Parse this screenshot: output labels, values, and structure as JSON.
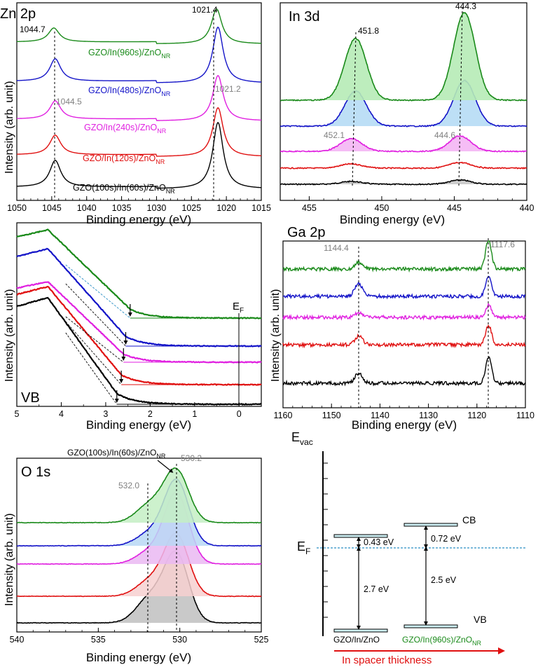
{
  "colors": {
    "green": "#1a8a1a",
    "blue": "#1414c8",
    "magenta": "#e020e0",
    "red": "#e01010",
    "black": "#000000",
    "gray": "#808080",
    "cyan": "#2a8fc4",
    "arrow_red": "#e01010"
  },
  "chart_data": [
    {
      "id": "zn2p",
      "type": "line",
      "title": "Zn 2p",
      "xlabel": "Binding energy (eV)",
      "ylabel": "Intensity (arb. unit)",
      "xlim": [
        1050,
        1015
      ],
      "xticks": [
        "1050",
        "1045",
        "1040",
        "1035",
        "1030",
        "1025",
        "1020",
        "1015"
      ],
      "peaks": [
        1044.7,
        1021.4
      ],
      "series": [
        {
          "name": "GZO(100s)/In(60s)/ZnO",
          "sub": "NR",
          "color": "black"
        },
        {
          "name": "GZO/In(120s)/ZnO",
          "sub": "NR",
          "color": "red"
        },
        {
          "name": "GZO/In(240s)/ZnO",
          "sub": "NR",
          "color": "magenta"
        },
        {
          "name": "GZO/In(480s)/ZnO",
          "sub": "NR",
          "color": "blue"
        },
        {
          "name": "GZO/In(960s)/ZnO",
          "sub": "NR",
          "color": "green"
        }
      ],
      "annotations": [
        "1044.7",
        "1021.4",
        "1044.5",
        "1021.2"
      ]
    },
    {
      "id": "in3d",
      "type": "line",
      "title": "In 3d",
      "xlabel": "Binding energy (eV)",
      "xlim": [
        457,
        440
      ],
      "xticks": [
        "455",
        "450",
        "445",
        "440"
      ],
      "peaks": [
        451.8,
        444.3
      ],
      "annotations": [
        "451.8",
        "444.3",
        "452.1",
        "444.6"
      ]
    },
    {
      "id": "vb",
      "type": "line",
      "title": "VB",
      "xlabel": "Binding energy (eV)",
      "ylabel": "Intensity (arb. unit)",
      "xlim": [
        5,
        -0.5
      ],
      "xticks": [
        "5",
        "4",
        "3",
        "2",
        "1",
        "0"
      ],
      "onsets": [
        2.75,
        2.65,
        2.6,
        2.55,
        2.45
      ],
      "fermi_label": "E",
      "fermi_sub": "F"
    },
    {
      "id": "ga2p",
      "type": "line",
      "title": "Ga 2p",
      "xlabel": "Binding energy (eV)",
      "ylabel": "Intensity (arb. unit)",
      "xlim": [
        1160,
        1110
      ],
      "xticks": [
        "1160",
        "1150",
        "1140",
        "1130",
        "1120",
        "1110"
      ],
      "peaks": [
        1144.4,
        1117.6
      ],
      "annotations": [
        "1144.4",
        "1117.6"
      ]
    },
    {
      "id": "o1s",
      "type": "line",
      "title": "O 1s",
      "xlabel": "Binding energy (eV)",
      "ylabel": "Intensity (arb. unit)",
      "xlim": [
        540,
        525
      ],
      "xticks": [
        "540",
        "535",
        "530",
        "525"
      ],
      "peaks": [
        532.0,
        530.2
      ],
      "label_name": "GZO(100s)/In(60s)/ZnO",
      "label_sub": "NR",
      "annotations": [
        "532.0",
        "530.2"
      ]
    },
    {
      "id": "band",
      "type": "diagram",
      "evac_label": "E",
      "evac_sub": "vac",
      "ef_label": "E",
      "ef_sub": "F",
      "cb_label": "CB",
      "vb_label": "VB",
      "left_label": "GZO/In/ZnO",
      "right_label": "GZO/In(960s)/ZnO",
      "right_sub": "NR",
      "gap_left": "2.7 eV",
      "gap_right": "2.5 eV",
      "offset_left": "0.43 eV",
      "offset_right": "0.72 eV",
      "arrow_caption": "In spacer thickness"
    }
  ]
}
